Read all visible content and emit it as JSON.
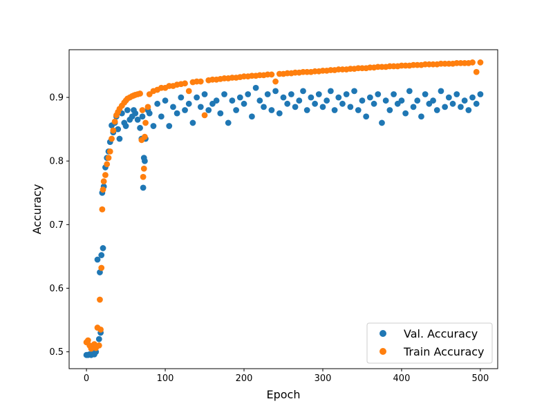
{
  "chart_data": {
    "type": "scatter",
    "title": "",
    "xlabel": "Epoch",
    "ylabel": "Accuracy",
    "xlim": [
      -22,
      522
    ],
    "ylim": [
      0.4735,
      0.975
    ],
    "x_ticks": [
      0,
      100,
      200,
      300,
      400,
      500
    ],
    "y_ticks": [
      0.5,
      0.6,
      0.7,
      0.8,
      0.9
    ],
    "x_tick_labels": [
      "0",
      "100",
      "200",
      "300",
      "400",
      "500"
    ],
    "y_tick_labels": [
      "0.5",
      "0.6",
      "0.7",
      "0.8",
      "0.9"
    ],
    "grid": false,
    "legend_position": "lower-right",
    "series": [
      {
        "name": "Val. Accuracy",
        "color": "#1f77b4",
        "x": [
          0,
          2,
          4,
          6,
          8,
          10,
          12,
          14,
          16,
          17,
          18,
          19,
          20,
          21,
          22,
          24,
          26,
          28,
          30,
          32,
          34,
          36,
          38,
          40,
          42,
          45,
          48,
          50,
          52,
          55,
          58,
          60,
          62,
          65,
          68,
          70,
          71,
          72,
          73,
          74,
          75,
          78,
          80,
          85,
          90,
          95,
          100,
          105,
          110,
          115,
          120,
          125,
          130,
          135,
          140,
          145,
          150,
          155,
          160,
          165,
          170,
          175,
          180,
          185,
          190,
          195,
          200,
          205,
          210,
          215,
          220,
          225,
          230,
          235,
          240,
          245,
          250,
          255,
          260,
          265,
          270,
          275,
          280,
          285,
          290,
          295,
          300,
          305,
          310,
          315,
          320,
          325,
          330,
          335,
          340,
          345,
          350,
          355,
          360,
          365,
          370,
          375,
          380,
          385,
          390,
          395,
          400,
          405,
          410,
          415,
          420,
          425,
          430,
          435,
          440,
          445,
          450,
          455,
          460,
          465,
          470,
          475,
          480,
          485,
          490,
          495,
          500
        ],
        "values": [
          0.495,
          0.495,
          0.496,
          0.495,
          0.497,
          0.496,
          0.5,
          0.645,
          0.52,
          0.625,
          0.53,
          0.652,
          0.75,
          0.663,
          0.76,
          0.79,
          0.805,
          0.815,
          0.83,
          0.856,
          0.845,
          0.86,
          0.87,
          0.85,
          0.835,
          0.875,
          0.86,
          0.855,
          0.88,
          0.865,
          0.87,
          0.88,
          0.875,
          0.865,
          0.852,
          0.835,
          0.87,
          0.758,
          0.805,
          0.8,
          0.835,
          0.88,
          0.875,
          0.855,
          0.89,
          0.87,
          0.895,
          0.855,
          0.885,
          0.875,
          0.9,
          0.88,
          0.89,
          0.86,
          0.9,
          0.885,
          0.905,
          0.88,
          0.89,
          0.895,
          0.875,
          0.905,
          0.86,
          0.895,
          0.88,
          0.9,
          0.89,
          0.905,
          0.87,
          0.915,
          0.895,
          0.885,
          0.905,
          0.88,
          0.91,
          0.875,
          0.9,
          0.89,
          0.905,
          0.885,
          0.895,
          0.91,
          0.88,
          0.9,
          0.89,
          0.905,
          0.885,
          0.895,
          0.91,
          0.88,
          0.9,
          0.89,
          0.905,
          0.885,
          0.91,
          0.88,
          0.895,
          0.87,
          0.9,
          0.89,
          0.905,
          0.86,
          0.895,
          0.88,
          0.905,
          0.89,
          0.895,
          0.875,
          0.91,
          0.885,
          0.895,
          0.87,
          0.905,
          0.89,
          0.895,
          0.88,
          0.91,
          0.885,
          0.9,
          0.89,
          0.905,
          0.885,
          0.895,
          0.88,
          0.9,
          0.89,
          0.905
        ]
      },
      {
        "name": "Train Accuracy",
        "color": "#ff7f0e",
        "x": [
          0,
          2,
          4,
          6,
          8,
          10,
          12,
          14,
          16,
          17,
          18,
          19,
          20,
          21,
          22,
          24,
          26,
          28,
          30,
          32,
          34,
          36,
          38,
          40,
          42,
          45,
          48,
          50,
          52,
          55,
          58,
          60,
          62,
          65,
          68,
          70,
          71,
          72,
          73,
          74,
          75,
          78,
          80,
          85,
          90,
          95,
          100,
          105,
          110,
          115,
          120,
          125,
          130,
          135,
          140,
          145,
          150,
          155,
          160,
          165,
          170,
          175,
          180,
          185,
          190,
          195,
          200,
          205,
          210,
          215,
          220,
          225,
          230,
          235,
          240,
          245,
          250,
          255,
          260,
          265,
          270,
          275,
          280,
          285,
          290,
          295,
          300,
          305,
          310,
          315,
          320,
          325,
          330,
          335,
          340,
          345,
          350,
          355,
          360,
          365,
          370,
          375,
          380,
          385,
          390,
          395,
          400,
          405,
          410,
          415,
          420,
          425,
          430,
          435,
          440,
          445,
          450,
          455,
          460,
          465,
          470,
          475,
          480,
          485,
          490,
          495,
          500
        ],
        "values": [
          0.515,
          0.518,
          0.51,
          0.505,
          0.508,
          0.512,
          0.506,
          0.538,
          0.51,
          0.582,
          0.535,
          0.632,
          0.724,
          0.755,
          0.768,
          0.778,
          0.795,
          0.805,
          0.815,
          0.835,
          0.848,
          0.862,
          0.872,
          0.877,
          0.882,
          0.887,
          0.892,
          0.895,
          0.898,
          0.9,
          0.902,
          0.903,
          0.904,
          0.905,
          0.906,
          0.833,
          0.88,
          0.775,
          0.788,
          0.838,
          0.86,
          0.885,
          0.905,
          0.91,
          0.912,
          0.915,
          0.915,
          0.918,
          0.918,
          0.92,
          0.921,
          0.922,
          0.91,
          0.924,
          0.925,
          0.925,
          0.872,
          0.927,
          0.928,
          0.928,
          0.929,
          0.93,
          0.93,
          0.931,
          0.931,
          0.932,
          0.933,
          0.933,
          0.934,
          0.934,
          0.935,
          0.935,
          0.936,
          0.936,
          0.925,
          0.937,
          0.937,
          0.938,
          0.938,
          0.939,
          0.939,
          0.94,
          0.94,
          0.94,
          0.941,
          0.941,
          0.942,
          0.942,
          0.943,
          0.943,
          0.944,
          0.944,
          0.944,
          0.945,
          0.945,
          0.946,
          0.946,
          0.946,
          0.947,
          0.947,
          0.948,
          0.948,
          0.948,
          0.949,
          0.949,
          0.949,
          0.95,
          0.95,
          0.95,
          0.951,
          0.951,
          0.951,
          0.952,
          0.952,
          0.952,
          0.952,
          0.953,
          0.953,
          0.953,
          0.953,
          0.954,
          0.954,
          0.954,
          0.954,
          0.955,
          0.94,
          0.955
        ]
      }
    ]
  }
}
